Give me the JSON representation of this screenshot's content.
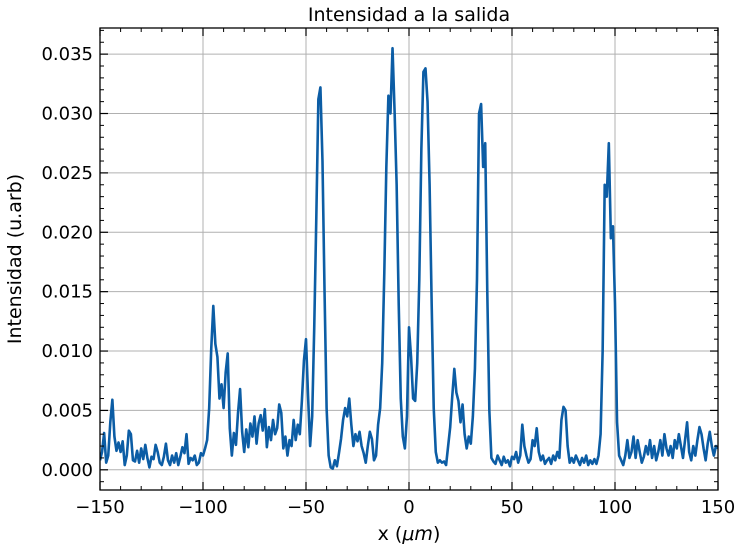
{
  "chart_data": {
    "type": "line",
    "title": "Intensidad a la salida",
    "xlabel_prefix": "x (",
    "xlabel_unit": "μm",
    "xlabel_suffix": ")",
    "ylabel": "Intensidad (u.arb)",
    "xlim": [
      -150,
      150
    ],
    "ylim": [
      -0.0017,
      0.0372
    ],
    "grid": true,
    "x_ticks": [
      -150,
      -100,
      -50,
      0,
      50,
      100,
      150
    ],
    "x_tick_labels": [
      "−150",
      "−100",
      "−50",
      "0",
      "50",
      "100",
      "150"
    ],
    "y_ticks": [
      0.0,
      0.005,
      0.01,
      0.015,
      0.02,
      0.025,
      0.03,
      0.035
    ],
    "y_tick_labels": [
      "0.000",
      "0.005",
      "0.010",
      "0.015",
      "0.020",
      "0.025",
      "0.030",
      "0.035"
    ],
    "series": [
      {
        "color": "#0c5da5",
        "points": [
          [
            -150,
            0.0008
          ],
          [
            -149,
            0.0015
          ],
          [
            -148,
            0.0031
          ],
          [
            -147,
            0.0006
          ],
          [
            -146,
            0.0012
          ],
          [
            -145,
            0.004
          ],
          [
            -144,
            0.0059
          ],
          [
            -143,
            0.0028
          ],
          [
            -142,
            0.0016
          ],
          [
            -141,
            0.0023
          ],
          [
            -140,
            0.0015
          ],
          [
            -139,
            0.0024
          ],
          [
            -138,
            0.0004
          ],
          [
            -137,
            0.0012
          ],
          [
            -136,
            0.0033
          ],
          [
            -135,
            0.003
          ],
          [
            -134,
            0.0008
          ],
          [
            -133,
            0.0007
          ],
          [
            -132,
            0.0016
          ],
          [
            -131,
            0.0006
          ],
          [
            -130,
            0.0018
          ],
          [
            -129,
            0.0009
          ],
          [
            -128,
            0.0021
          ],
          [
            -127,
            0.001
          ],
          [
            -126,
            0.0002
          ],
          [
            -125,
            0.0011
          ],
          [
            -124,
            0.0009
          ],
          [
            -123,
            0.0021
          ],
          [
            -122,
            0.0015
          ],
          [
            -121,
            0.0006
          ],
          [
            -120,
            0.0004
          ],
          [
            -119,
            0.0011
          ],
          [
            -118,
            0.0022
          ],
          [
            -117,
            0.0008
          ],
          [
            -116,
            0.0004
          ],
          [
            -115,
            0.0012
          ],
          [
            -114,
            0.0006
          ],
          [
            -113,
            0.0014
          ],
          [
            -112,
            0.0004
          ],
          [
            -111,
            0.0011
          ],
          [
            -110,
            0.0019
          ],
          [
            -109,
            0.0014
          ],
          [
            -108,
            0.003
          ],
          [
            -107,
            0.0005
          ],
          [
            -106,
            0.001
          ],
          [
            -105,
            0.0008
          ],
          [
            -104,
            0.0012
          ],
          [
            -103,
            0.0004
          ],
          [
            -102,
            0.0006
          ],
          [
            -101,
            0.0014
          ],
          [
            -100,
            0.0012
          ],
          [
            -99,
            0.0018
          ],
          [
            -98,
            0.0025
          ],
          [
            -97,
            0.0052
          ],
          [
            -96,
            0.0102
          ],
          [
            -95,
            0.0138
          ],
          [
            -94,
            0.0106
          ],
          [
            -93,
            0.0095
          ],
          [
            -92,
            0.006
          ],
          [
            -91,
            0.0072
          ],
          [
            -90,
            0.0052
          ],
          [
            -89,
            0.0082
          ],
          [
            -88,
            0.0098
          ],
          [
            -87,
            0.0035
          ],
          [
            -86,
            0.0012
          ],
          [
            -85,
            0.0031
          ],
          [
            -84,
            0.0021
          ],
          [
            -83,
            0.0048
          ],
          [
            -82,
            0.0068
          ],
          [
            -81,
            0.0032
          ],
          [
            -80,
            0.0015
          ],
          [
            -79,
            0.0034
          ],
          [
            -78,
            0.0019
          ],
          [
            -77,
            0.0039
          ],
          [
            -76,
            0.0028
          ],
          [
            -75,
            0.0045
          ],
          [
            -74,
            0.0022
          ],
          [
            -73,
            0.0039
          ],
          [
            -72,
            0.0046
          ],
          [
            -71,
            0.0033
          ],
          [
            -70,
            0.0051
          ],
          [
            -69,
            0.0019
          ],
          [
            -68,
            0.0036
          ],
          [
            -67,
            0.0025
          ],
          [
            -66,
            0.0042
          ],
          [
            -65,
            0.003
          ],
          [
            -64,
            0.0035
          ],
          [
            -63,
            0.0055
          ],
          [
            -62,
            0.0048
          ],
          [
            -61,
            0.0018
          ],
          [
            -60,
            0.0028
          ],
          [
            -59,
            0.0012
          ],
          [
            -58,
            0.0025
          ],
          [
            -57,
            0.002
          ],
          [
            -56,
            0.0042
          ],
          [
            -55,
            0.0025
          ],
          [
            -54,
            0.0038
          ],
          [
            -53,
            0.003
          ],
          [
            -52,
            0.0058
          ],
          [
            -51,
            0.0092
          ],
          [
            -50,
            0.011
          ],
          [
            -49,
            0.0062
          ],
          [
            -48,
            0.002
          ],
          [
            -47,
            0.0045
          ],
          [
            -46,
            0.012
          ],
          [
            -45,
            0.0212
          ],
          [
            -44,
            0.0312
          ],
          [
            -43,
            0.0322
          ],
          [
            -42,
            0.026
          ],
          [
            -41,
            0.015
          ],
          [
            -40,
            0.0052
          ],
          [
            -39,
            0.0012
          ],
          [
            -38,
            0.0002
          ],
          [
            -37,
            0.0001
          ],
          [
            -36,
            0.0008
          ],
          [
            -35,
            0.0003
          ],
          [
            -34,
            0.0014
          ],
          [
            -33,
            0.0026
          ],
          [
            -32,
            0.0042
          ],
          [
            -31,
            0.0052
          ],
          [
            -30,
            0.0045
          ],
          [
            -29,
            0.006
          ],
          [
            -28,
            0.0038
          ],
          [
            -27,
            0.002
          ],
          [
            -26,
            0.003
          ],
          [
            -25,
            0.0024
          ],
          [
            -24,
            0.0032
          ],
          [
            -23,
            0.002
          ],
          [
            -22,
            0.0014
          ],
          [
            -21,
            0.0006
          ],
          [
            -20,
            0.002
          ],
          [
            -19,
            0.0032
          ],
          [
            -18,
            0.0026
          ],
          [
            -17,
            0.0008
          ],
          [
            -16,
            0.0012
          ],
          [
            -15,
            0.0038
          ],
          [
            -14,
            0.0052
          ],
          [
            -13,
            0.009
          ],
          [
            -12,
            0.0165
          ],
          [
            -11,
            0.0255
          ],
          [
            -10,
            0.0315
          ],
          [
            -9,
            0.03
          ],
          [
            -8,
            0.0355
          ],
          [
            -7,
            0.0302
          ],
          [
            -6,
            0.024
          ],
          [
            -5,
            0.014
          ],
          [
            -4,
            0.006
          ],
          [
            -3,
            0.0028
          ],
          [
            -2,
            0.0018
          ],
          [
            -1,
            0.0045
          ],
          [
            0,
            0.012
          ],
          [
            1,
            0.0095
          ],
          [
            2,
            0.006
          ],
          [
            3,
            0.0058
          ],
          [
            4,
            0.009
          ],
          [
            5,
            0.016
          ],
          [
            6,
            0.027
          ],
          [
            7,
            0.0335
          ],
          [
            8,
            0.0338
          ],
          [
            9,
            0.031
          ],
          [
            10,
            0.024
          ],
          [
            11,
            0.014
          ],
          [
            12,
            0.0052
          ],
          [
            13,
            0.0015
          ],
          [
            14,
            0.0006
          ],
          [
            15,
            0.0008
          ],
          [
            16,
            0.0006
          ],
          [
            17,
            0.0007
          ],
          [
            18,
            0.0004
          ],
          [
            19,
            0.002
          ],
          [
            20,
            0.0036
          ],
          [
            21,
            0.0062
          ],
          [
            22,
            0.0085
          ],
          [
            23,
            0.0065
          ],
          [
            24,
            0.0058
          ],
          [
            25,
            0.004
          ],
          [
            26,
            0.0055
          ],
          [
            27,
            0.003
          ],
          [
            28,
            0.0018
          ],
          [
            29,
            0.0028
          ],
          [
            30,
            0.0022
          ],
          [
            31,
            0.0045
          ],
          [
            32,
            0.0085
          ],
          [
            33,
            0.016
          ],
          [
            34,
            0.03
          ],
          [
            35,
            0.0308
          ],
          [
            36,
            0.0255
          ],
          [
            37,
            0.0275
          ],
          [
            38,
            0.015
          ],
          [
            39,
            0.005
          ],
          [
            40,
            0.001
          ],
          [
            41,
            0.0007
          ],
          [
            42,
            0.0005
          ],
          [
            43,
            0.0012
          ],
          [
            44,
            0.0008
          ],
          [
            45,
            0.0004
          ],
          [
            46,
            0.0011
          ],
          [
            47,
            0.0006
          ],
          [
            48,
            0.0008
          ],
          [
            49,
            0.0003
          ],
          [
            50,
            0.0011
          ],
          [
            51,
            0.0009
          ],
          [
            52,
            0.0015
          ],
          [
            53,
            0.0006
          ],
          [
            54,
            0.0012
          ],
          [
            55,
            0.0038
          ],
          [
            56,
            0.002
          ],
          [
            57,
            0.0012
          ],
          [
            58,
            0.0006
          ],
          [
            59,
            0.0009
          ],
          [
            60,
            0.0025
          ],
          [
            61,
            0.002
          ],
          [
            62,
            0.0035
          ],
          [
            63,
            0.0015
          ],
          [
            64,
            0.0008
          ],
          [
            65,
            0.0012
          ],
          [
            66,
            0.0005
          ],
          [
            67,
            0.0008
          ],
          [
            68,
            0.001
          ],
          [
            69,
            0.0005
          ],
          [
            70,
            0.0012
          ],
          [
            71,
            0.0008
          ],
          [
            72,
            0.0015
          ],
          [
            73,
            0.001
          ],
          [
            74,
            0.0042
          ],
          [
            75,
            0.0053
          ],
          [
            76,
            0.005
          ],
          [
            77,
            0.002
          ],
          [
            78,
            0.0006
          ],
          [
            79,
            0.001
          ],
          [
            80,
            0.0006
          ],
          [
            81,
            0.0012
          ],
          [
            82,
            0.0008
          ],
          [
            83,
            0.0004
          ],
          [
            84,
            0.001
          ],
          [
            85,
            0.0006
          ],
          [
            86,
            0.0012
          ],
          [
            87,
            0.0004
          ],
          [
            88,
            0.0008
          ],
          [
            89,
            0.0005
          ],
          [
            90,
            0.0009
          ],
          [
            91,
            0.0005
          ],
          [
            92,
            0.0012
          ],
          [
            93,
            0.003
          ],
          [
            94,
            0.01
          ],
          [
            95,
            0.024
          ],
          [
            96,
            0.023
          ],
          [
            97,
            0.0275
          ],
          [
            98,
            0.0195
          ],
          [
            99,
            0.0205
          ],
          [
            100,
            0.014
          ],
          [
            101,
            0.004
          ],
          [
            102,
            0.0012
          ],
          [
            103,
            0.0008
          ],
          [
            104,
            0.0004
          ],
          [
            105,
            0.0012
          ],
          [
            106,
            0.0025
          ],
          [
            107,
            0.001
          ],
          [
            108,
            0.0015
          ],
          [
            109,
            0.0028
          ],
          [
            110,
            0.001
          ],
          [
            111,
            0.0025
          ],
          [
            112,
            0.0015
          ],
          [
            113,
            0.0006
          ],
          [
            114,
            0.0011
          ],
          [
            115,
            0.002
          ],
          [
            116,
            0.0013
          ],
          [
            117,
            0.0025
          ],
          [
            118,
            0.001
          ],
          [
            119,
            0.002
          ],
          [
            120,
            0.0008
          ],
          [
            121,
            0.0015
          ],
          [
            122,
            0.0025
          ],
          [
            123,
            0.0012
          ],
          [
            124,
            0.003
          ],
          [
            125,
            0.0018
          ],
          [
            126,
            0.0012
          ],
          [
            127,
            0.002
          ],
          [
            128,
            0.001
          ],
          [
            129,
            0.0025
          ],
          [
            130,
            0.0018
          ],
          [
            131,
            0.003
          ],
          [
            132,
            0.002
          ],
          [
            133,
            0.001
          ],
          [
            134,
            0.0025
          ],
          [
            135,
            0.004
          ],
          [
            136,
            0.0015
          ],
          [
            137,
            0.0008
          ],
          [
            138,
            0.002
          ],
          [
            139,
            0.0012
          ],
          [
            140,
            0.0025
          ],
          [
            141,
            0.0036
          ],
          [
            142,
            0.003
          ],
          [
            143,
            0.0018
          ],
          [
            144,
            0.0008
          ],
          [
            145,
            0.0022
          ],
          [
            146,
            0.0032
          ],
          [
            147,
            0.002
          ],
          [
            148,
            0.0012
          ],
          [
            149,
            0.002
          ],
          [
            150,
            0.0018
          ]
        ]
      }
    ]
  }
}
